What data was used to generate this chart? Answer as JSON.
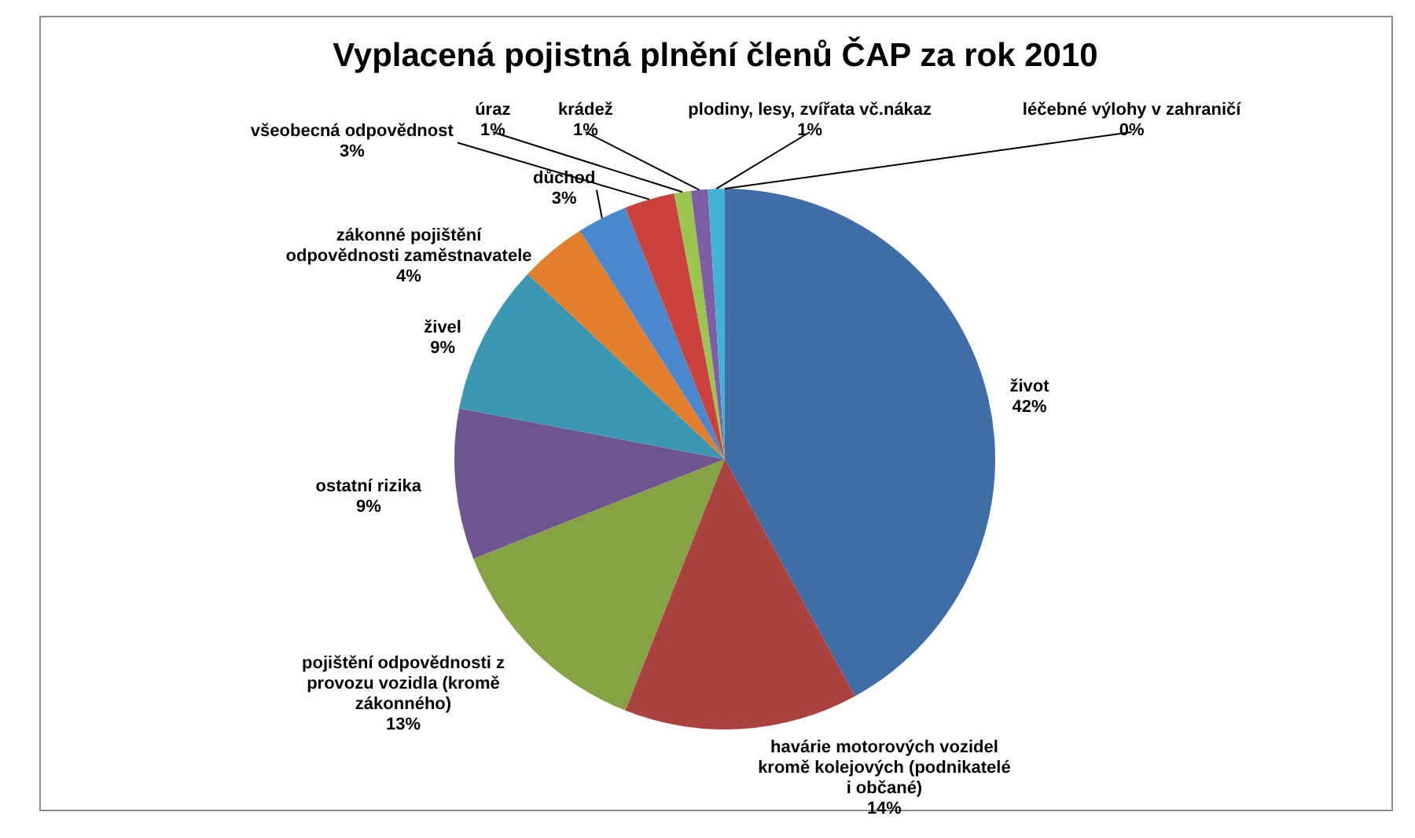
{
  "chart_data": {
    "type": "pie",
    "title": "Vyplacená pojistná plnění členů ČAP za rok 2010",
    "categories": [
      "život",
      "havárie motorových vozidel kromě kolejových (podnikatelé i občané)",
      "pojištění odpovědnosti z provozu vozidla (kromě zákonného)",
      "ostatní rizika",
      "živel",
      "zákonné pojištění odpovědnosti zaměstnavatele",
      "důchod",
      "všeobecná odpovědnost",
      "úraz",
      "krádež",
      "plodiny, lesy, zvířata vč.nákaz",
      "léčebné výlohy v zahraničí"
    ],
    "values": [
      42,
      14,
      13,
      9,
      9,
      4,
      3,
      3,
      1,
      1,
      1,
      0
    ],
    "value_labels": [
      "42%",
      "14%",
      "13%",
      "9%",
      "9%",
      "4%",
      "3%",
      "3%",
      "1%",
      "1%",
      "1%",
      "0%"
    ],
    "colors": [
      "#3f6ea6",
      "#a94240",
      "#86a244",
      "#6e5590",
      "#3b97b0",
      "#e17f2c",
      "#4a87cc",
      "#c9423e",
      "#9cc450",
      "#7e5fa6",
      "#42b3d5",
      "#f79a3a"
    ],
    "legend": false
  }
}
